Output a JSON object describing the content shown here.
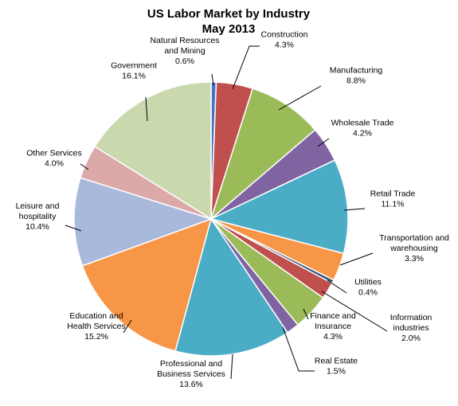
{
  "chart_data": {
    "type": "pie",
    "title_lines": [
      "US Labor Market by Industry",
      "May 2013"
    ],
    "unit": "%",
    "slices": [
      {
        "name": "Natural Resources and Mining",
        "label_lines": [
          "Natural Resources",
          "and Mining"
        ],
        "value": 0.6,
        "value_text": "0.6%",
        "color": "#4472C4"
      },
      {
        "name": "Construction",
        "label_lines": [
          "Construction"
        ],
        "value": 4.3,
        "value_text": "4.3%",
        "color": "#C0504D"
      },
      {
        "name": "Manufacturing",
        "label_lines": [
          "Manufacturing"
        ],
        "value": 8.8,
        "value_text": "8.8%",
        "color": "#9BBB59"
      },
      {
        "name": "Wholesale Trade",
        "label_lines": [
          "Wholesale Trade"
        ],
        "value": 4.2,
        "value_text": "4.2%",
        "color": "#8064A2"
      },
      {
        "name": "Retail Trade",
        "label_lines": [
          "Retail Trade"
        ],
        "value": 11.1,
        "value_text": "11.1%",
        "color": "#4BACC6"
      },
      {
        "name": "Transportation and warehousing",
        "label_lines": [
          "Transportation and",
          "warehousing"
        ],
        "value": 3.3,
        "value_text": "3.3%",
        "color": "#F79646"
      },
      {
        "name": "Utilities",
        "label_lines": [
          "Utilities"
        ],
        "value": 0.4,
        "value_text": "0.4%",
        "color": "#2C4D75"
      },
      {
        "name": "Information industries",
        "label_lines": [
          "Information",
          "industries"
        ],
        "value": 2.0,
        "value_text": "2.0%",
        "color": "#C0504D"
      },
      {
        "name": "Finance and Insurance",
        "label_lines": [
          "Finance and",
          "Insurance"
        ],
        "value": 4.3,
        "value_text": "4.3%",
        "color": "#9BBB59"
      },
      {
        "name": "Real Estate",
        "label_lines": [
          "Real Estate"
        ],
        "value": 1.5,
        "value_text": "1.5%",
        "color": "#8064A2"
      },
      {
        "name": "Professional and Business Services",
        "label_lines": [
          "Professional and",
          "Business Services"
        ],
        "value": 13.6,
        "value_text": "13.6%",
        "color": "#4BACC6"
      },
      {
        "name": "Education and Health Services",
        "label_lines": [
          "Education and",
          "Health Services"
        ],
        "value": 15.2,
        "value_text": "15.2%",
        "color": "#F79646"
      },
      {
        "name": "Leisure and hospitality",
        "label_lines": [
          "Leisure and",
          "hospitality"
        ],
        "value": 10.4,
        "value_text": "10.4%",
        "color": "#A9B9DC"
      },
      {
        "name": "Other Services",
        "label_lines": [
          "Other Services"
        ],
        "value": 4.0,
        "value_text": "4.0%",
        "color": "#DBA9A8"
      },
      {
        "name": "Government",
        "label_lines": [
          "Government"
        ],
        "value": 16.1,
        "value_text": "16.1%",
        "color": "#C9D8AD"
      }
    ],
    "legend": "none"
  }
}
